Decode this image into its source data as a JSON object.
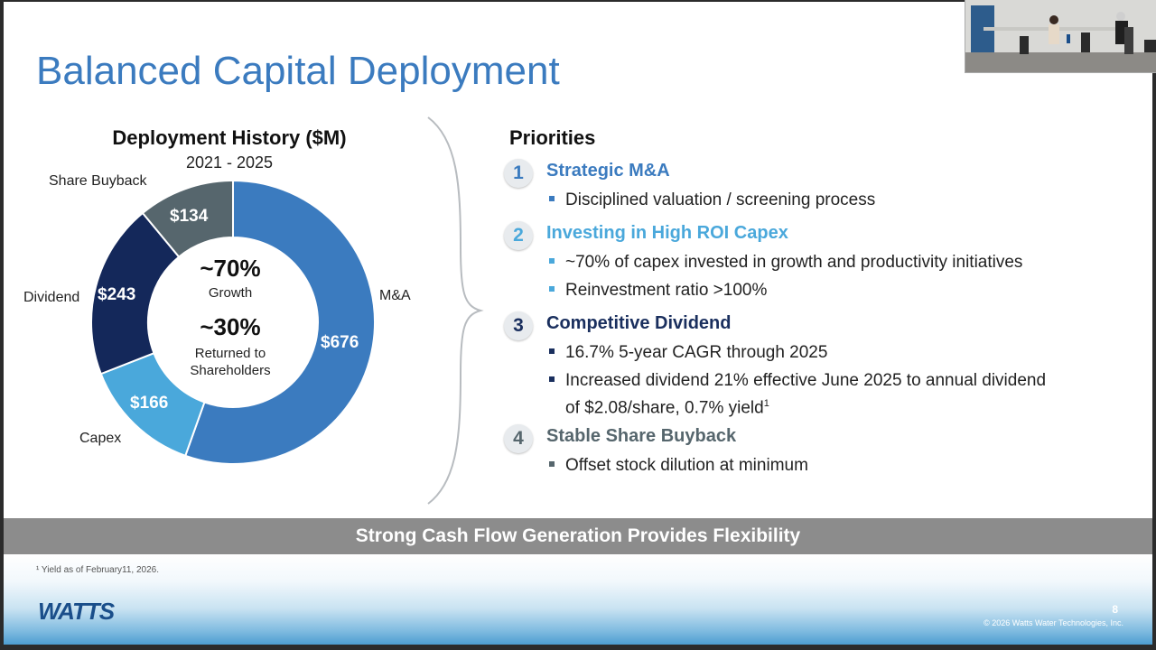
{
  "slide": {
    "title": "Balanced Capital Deployment",
    "chart_title": "Deployment History ($M)",
    "chart_subtitle": "2021 - 2025",
    "center": {
      "growth_pct": "~70%",
      "growth_label": "Growth",
      "returned_pct": "~30%",
      "returned_label_1": "Returned to",
      "returned_label_2": "Shareholders"
    },
    "priorities_title": "Priorities",
    "priorities": [
      {
        "num": "1",
        "title": "Strategic M&A",
        "color": "#3b7bbf",
        "bullets": [
          "Disciplined valuation / screening process"
        ]
      },
      {
        "num": "2",
        "title": "Investing in High ROI Capex",
        "color": "#4aa8db",
        "bullets": [
          "~70% of capex invested in growth and productivity initiatives",
          "Reinvestment ratio >100%"
        ]
      },
      {
        "num": "3",
        "title": "Competitive Dividend",
        "color": "#1a2f5e",
        "bullets": [
          "16.7% 5-year CAGR through 2025",
          "Increased dividend 21% effective June 2025 to annual dividend",
          "of $2.08/share, 0.7% yield"
        ]
      },
      {
        "num": "4",
        "title": "Stable Share Buyback",
        "color": "#56666d",
        "bullets": [
          "Offset stock dilution at minimum"
        ]
      }
    ],
    "footnote_sup": "1",
    "band_text": "Strong Cash Flow Generation Provides Flexibility",
    "footnote": "¹ Yield as of February11, 2026.",
    "logo_text": "WATTS",
    "page_number": "8",
    "copyright": "© 2026 Watts Water Technologies, Inc."
  },
  "chart_data": {
    "type": "pie",
    "title": "Deployment History ($M)",
    "subtitle": "2021 - 2025",
    "unit": "$M",
    "slices": [
      {
        "label": "M&A",
        "value": 676,
        "display": "$676",
        "color": "#3b7bbf"
      },
      {
        "label": "Capex",
        "value": 166,
        "display": "$166",
        "color": "#4aa8db"
      },
      {
        "label": "Dividend",
        "value": 243,
        "display": "$243",
        "color": "#14285a"
      },
      {
        "label": "Share Buyback",
        "value": 134,
        "display": "$134",
        "color": "#56666d"
      }
    ]
  }
}
